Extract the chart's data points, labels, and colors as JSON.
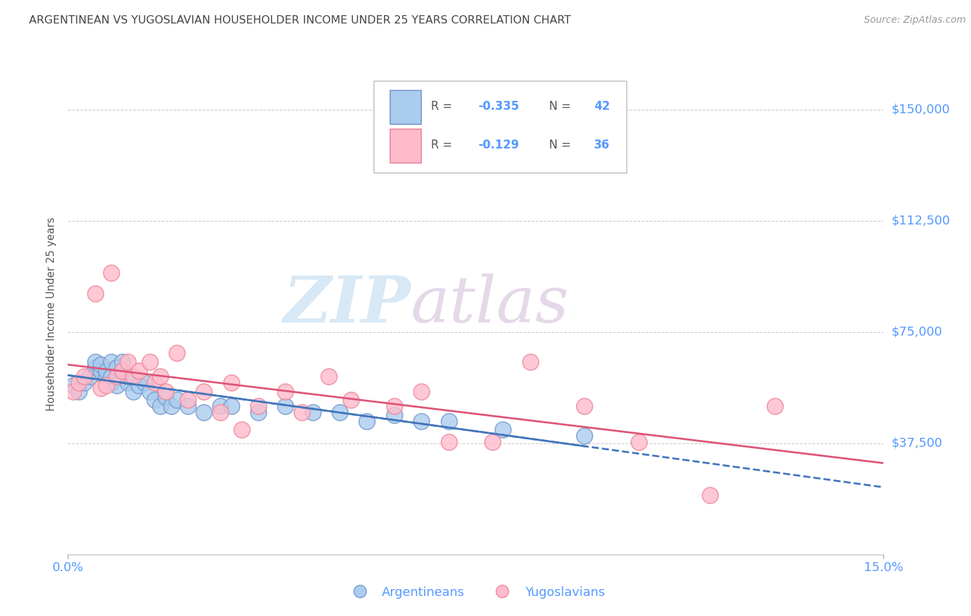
{
  "title": "ARGENTINEAN VS YUGOSLAVIAN HOUSEHOLDER INCOME UNDER 25 YEARS CORRELATION CHART",
  "source": "Source: ZipAtlas.com",
  "ylabel": "Householder Income Under 25 years",
  "watermark_zip": "ZIP",
  "watermark_atlas": "atlas",
  "legend_label1": "Argentineans",
  "legend_label2": "Yugoslavians",
  "legend_r1": "-0.335",
  "legend_n1": "42",
  "legend_r2": "-0.129",
  "legend_n2": "36",
  "ytick_values": [
    37500,
    75000,
    112500,
    150000
  ],
  "ytick_labels": [
    "$37,500",
    "$75,000",
    "$112,500",
    "$150,000"
  ],
  "ylim": [
    0,
    162000
  ],
  "xlim": [
    0.0,
    0.15
  ],
  "xtick_labels": [
    "0.0%",
    "15.0%"
  ],
  "xtick_vals": [
    0.0,
    0.15
  ],
  "color_arg_fill": "#AACCEE",
  "color_yug_fill": "#FFBBCC",
  "color_arg_edge": "#7799CC",
  "color_yug_edge": "#EE8899",
  "color_arg_line": "#4477BB",
  "color_yug_line": "#DD5577",
  "bg_color": "#FFFFFF",
  "grid_color": "#CCCCCC",
  "title_color": "#444444",
  "axis_color": "#5599FF",
  "source_color": "#999999",
  "arg_x": [
    0.001,
    0.002,
    0.003,
    0.004,
    0.005,
    0.005,
    0.006,
    0.006,
    0.007,
    0.007,
    0.008,
    0.008,
    0.008,
    0.009,
    0.009,
    0.01,
    0.01,
    0.011,
    0.011,
    0.012,
    0.013,
    0.014,
    0.015,
    0.016,
    0.017,
    0.018,
    0.019,
    0.02,
    0.022,
    0.025,
    0.028,
    0.03,
    0.035,
    0.04,
    0.045,
    0.05,
    0.055,
    0.06,
    0.065,
    0.07,
    0.08,
    0.095
  ],
  "arg_y": [
    57000,
    55000,
    58000,
    60000,
    63000,
    65000,
    62000,
    64000,
    60000,
    62000,
    65000,
    58000,
    60000,
    63000,
    57000,
    62000,
    65000,
    58000,
    60000,
    55000,
    57000,
    58000,
    55000,
    52000,
    50000,
    53000,
    50000,
    52000,
    50000,
    48000,
    50000,
    50000,
    48000,
    50000,
    48000,
    48000,
    45000,
    47000,
    45000,
    45000,
    42000,
    40000
  ],
  "yug_x": [
    0.001,
    0.002,
    0.003,
    0.005,
    0.006,
    0.007,
    0.008,
    0.009,
    0.01,
    0.011,
    0.012,
    0.013,
    0.015,
    0.016,
    0.017,
    0.018,
    0.02,
    0.022,
    0.025,
    0.028,
    0.03,
    0.032,
    0.035,
    0.04,
    0.043,
    0.048,
    0.052,
    0.06,
    0.065,
    0.07,
    0.078,
    0.085,
    0.095,
    0.105,
    0.118,
    0.13
  ],
  "yug_y": [
    55000,
    58000,
    60000,
    88000,
    56000,
    57000,
    95000,
    60000,
    62000,
    65000,
    60000,
    62000,
    65000,
    58000,
    60000,
    55000,
    68000,
    52000,
    55000,
    48000,
    58000,
    42000,
    50000,
    55000,
    48000,
    60000,
    52000,
    50000,
    55000,
    38000,
    38000,
    65000,
    50000,
    38000,
    20000,
    50000
  ]
}
